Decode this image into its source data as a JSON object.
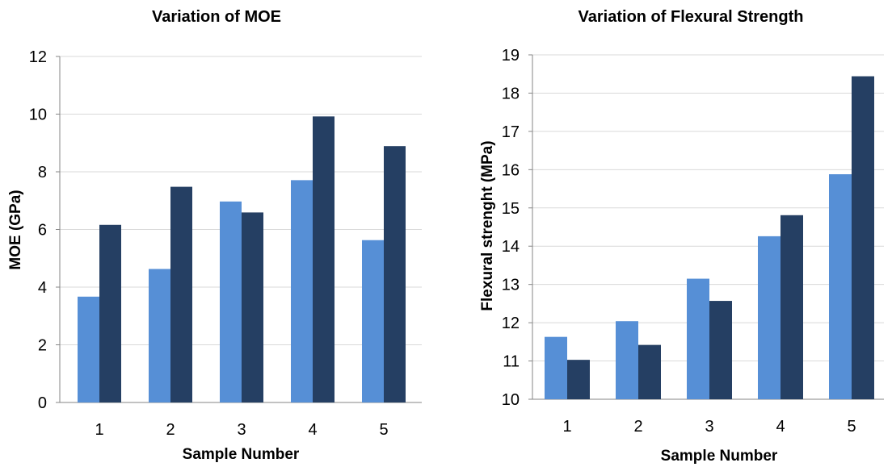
{
  "chart_data": [
    {
      "type": "bar",
      "title": "Variation of MOE",
      "xlabel": "Sample Number",
      "ylabel": "MOE (GPa)",
      "categories": [
        "1",
        "2",
        "3",
        "4",
        "5"
      ],
      "yticks": [
        "0",
        "2",
        "4",
        "6",
        "8",
        "10",
        "12"
      ],
      "ylim": [
        0,
        12
      ],
      "grid": true,
      "series": [
        {
          "values": [
            3.67,
            4.63,
            6.97,
            7.71,
            5.63
          ]
        },
        {
          "values": [
            6.16,
            7.48,
            6.59,
            9.92,
            8.89
          ]
        }
      ]
    },
    {
      "type": "bar",
      "title": "Variation of Flexural Strength",
      "xlabel": "Sample Number",
      "ylabel": "Flexural strenght (MPa)",
      "categories": [
        "1",
        "2",
        "3",
        "4",
        "5"
      ],
      "yticks": [
        "10",
        "11",
        "12",
        "13",
        "14",
        "15",
        "16",
        "17",
        "18",
        "19"
      ],
      "ylim": [
        10,
        19
      ],
      "grid": true,
      "series": [
        {
          "values": [
            11.63,
            12.04,
            13.15,
            14.26,
            15.88
          ]
        },
        {
          "values": [
            11.03,
            11.42,
            12.57,
            14.81,
            18.44
          ]
        }
      ]
    }
  ],
  "colors": {
    "series1": "#568FD6",
    "series2": "#253F63",
    "grid": "#D9D9D9",
    "axis": "#868686"
  }
}
